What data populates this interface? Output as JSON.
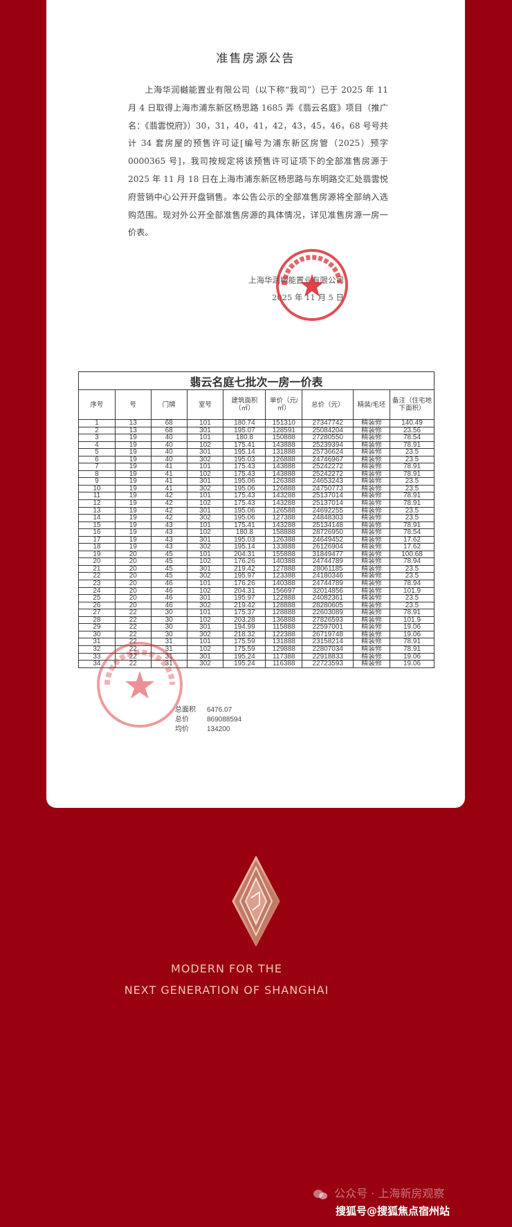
{
  "notice": {
    "title": "准售房源公告",
    "body": "上海华润樾能置业有限公司（以下称“我司”）已于 2025 年 11 月 4 日取得上海市浦东新区杨思路 1685 弄《翡云名庭》项目（推广名：《翡雲悦府》）30，31，40，41，42，43，45，46，68 号号共计 34 套房屋的预售许可证[编号为浦东新区房管（2025）预字 0000365 号]，我司按规定将该预售许可证项下的全部准售房源于 2025 年 11 月 18 日在上海市浦东新区杨思路与东明路交汇处翡雲悦府营销中心公开开盘销售。本公告公示的全部准售房源将全部纳入选购范围。现对外公开全部准售房源的具体情况，详见准售房源一房一价表。",
    "signature_company": "上海华润樾能置业有限公司",
    "signature_date": "2025 年 11 月 5 日",
    "stamp_text": "上海华润樾能置业有限公司"
  },
  "price_table": {
    "title": "翡云名庭七批次一房一价表",
    "headers": [
      "序号",
      "号",
      "门牌",
      "室号",
      "建筑面积（㎡）",
      "单价（元/㎡）",
      "总价（元）",
      "精装/毛坯",
      "备注（住宅地下面积）"
    ],
    "rows": [
      [
        "1",
        "13",
        "68",
        "101",
        "180.74",
        "151310",
        "27347742",
        "精装修",
        "140.49"
      ],
      [
        "2",
        "13",
        "68",
        "301",
        "195.07",
        "128591",
        "25084204",
        "精装修",
        "23.56"
      ],
      [
        "3",
        "19",
        "40",
        "101",
        "180.8",
        "150888",
        "27280550",
        "精装修",
        "78.54"
      ],
      [
        "4",
        "19",
        "40",
        "102",
        "175.41",
        "143888",
        "25239394",
        "精装修",
        "78.91"
      ],
      [
        "5",
        "19",
        "40",
        "301",
        "195.14",
        "131888",
        "25736624",
        "精装修",
        "23.5"
      ],
      [
        "6",
        "19",
        "40",
        "302",
        "195.03",
        "126888",
        "24746967",
        "精装修",
        "23.5"
      ],
      [
        "7",
        "19",
        "41",
        "101",
        "175.43",
        "143888",
        "25242272",
        "精装修",
        "78.91"
      ],
      [
        "8",
        "19",
        "41",
        "102",
        "175.43",
        "143888",
        "25242272",
        "精装修",
        "78.91"
      ],
      [
        "9",
        "19",
        "41",
        "301",
        "195.06",
        "126388",
        "24653243",
        "精装修",
        "23.5"
      ],
      [
        "10",
        "19",
        "41",
        "302",
        "195.06",
        "126888",
        "24750773",
        "精装修",
        "23.5"
      ],
      [
        "11",
        "19",
        "42",
        "101",
        "175.43",
        "143288",
        "25137014",
        "精装修",
        "78.91"
      ],
      [
        "12",
        "19",
        "42",
        "102",
        "175.43",
        "143288",
        "25137014",
        "精装修",
        "78.91"
      ],
      [
        "13",
        "19",
        "42",
        "301",
        "195.06",
        "126588",
        "24692255",
        "精装修",
        "23.5"
      ],
      [
        "14",
        "19",
        "42",
        "302",
        "195.06",
        "127388",
        "24848303",
        "精装修",
        "23.5"
      ],
      [
        "15",
        "19",
        "43",
        "101",
        "175.41",
        "143288",
        "25134148",
        "精装修",
        "78.91"
      ],
      [
        "16",
        "19",
        "43",
        "102",
        "180.8",
        "158888",
        "28726950",
        "精装修",
        "78.54"
      ],
      [
        "17",
        "19",
        "43",
        "301",
        "195.03",
        "126388",
        "24649452",
        "精装修",
        "17.62"
      ],
      [
        "18",
        "19",
        "43",
        "302",
        "195.14",
        "133888",
        "26126904",
        "精装修",
        "17.62"
      ],
      [
        "19",
        "20",
        "45",
        "101",
        "204.31",
        "155888",
        "31849477",
        "精装修",
        "100.68"
      ],
      [
        "20",
        "20",
        "45",
        "102",
        "176.26",
        "140388",
        "24744789",
        "精装修",
        "78.94"
      ],
      [
        "21",
        "20",
        "45",
        "301",
        "219.42",
        "127888",
        "28061185",
        "精装修",
        "23.5"
      ],
      [
        "22",
        "20",
        "45",
        "302",
        "195.97",
        "123388",
        "24180346",
        "精装修",
        "23.5"
      ],
      [
        "23",
        "20",
        "46",
        "101",
        "176.26",
        "140388",
        "24744789",
        "精装修",
        "78.94"
      ],
      [
        "24",
        "20",
        "46",
        "102",
        "204.31",
        "156697",
        "32014856",
        "精装修",
        "101.9"
      ],
      [
        "25",
        "20",
        "46",
        "301",
        "195.97",
        "122888",
        "24082361",
        "精装修",
        "23.5"
      ],
      [
        "26",
        "20",
        "46",
        "302",
        "219.42",
        "128888",
        "28280605",
        "精装修",
        "23.5"
      ],
      [
        "27",
        "22",
        "30",
        "101",
        "175.37",
        "128888",
        "22603089",
        "精装修",
        "78.91"
      ],
      [
        "28",
        "22",
        "30",
        "102",
        "203.28",
        "136888",
        "27826593",
        "精装修",
        "101.9"
      ],
      [
        "29",
        "22",
        "30",
        "301",
        "194.99",
        "115888",
        "22597001",
        "精装修",
        "19.06"
      ],
      [
        "30",
        "22",
        "30",
        "302",
        "218.32",
        "122388",
        "26719748",
        "精装修",
        "19.06"
      ],
      [
        "31",
        "22",
        "31",
        "101",
        "175.59",
        "131888",
        "23158214",
        "精装修",
        "78.91"
      ],
      [
        "32",
        "22",
        "31",
        "102",
        "175.59",
        "129888",
        "22807034",
        "精装修",
        "78.91"
      ],
      [
        "33",
        "22",
        "31",
        "301",
        "195.24",
        "117388",
        "22918833",
        "精装修",
        "19.06"
      ],
      [
        "34",
        "22",
        "31",
        "302",
        "195.24",
        "116388",
        "22723593",
        "精装修",
        "19.06"
      ]
    ],
    "totals": {
      "area_label": "总面积",
      "area_value": "6476.07",
      "price_label": "总价",
      "price_value": "869088594",
      "avg_label": "均价",
      "avg_value": "134200"
    }
  },
  "footer": {
    "slogan_line1": "MODERN FOR THE",
    "slogan_line2": "NEXT GENERATION OF SHANGHAI",
    "watermark_wechat": "公众号 · 上海新房观察",
    "watermark_sohu": "搜狐号@搜狐焦点宿州站",
    "background_color": "#990010",
    "accent_color": "#f3c7b8"
  }
}
